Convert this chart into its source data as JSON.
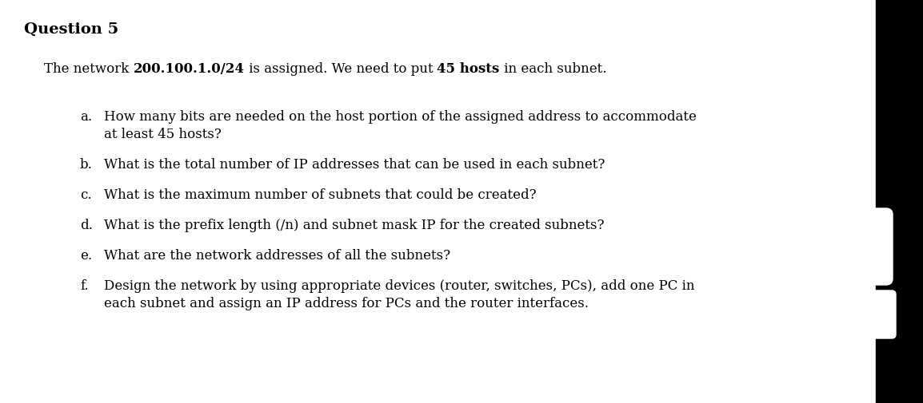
{
  "title": "Question 5",
  "intro_parts": [
    {
      "text": "The network ",
      "bold": false
    },
    {
      "text": "200.100.1.0/24",
      "bold": true
    },
    {
      "text": " is assigned. We need to put ",
      "bold": false
    },
    {
      "text": "45 hosts",
      "bold": true
    },
    {
      "text": " in each subnet.",
      "bold": false
    }
  ],
  "items": [
    {
      "label": "a.",
      "lines": [
        "How many bits are needed on the host portion of the assigned address to accommodate",
        "at least 45 hosts?"
      ]
    },
    {
      "label": "b.",
      "lines": [
        "What is the total number of IP addresses that can be used in each subnet?"
      ]
    },
    {
      "label": "c.",
      "lines": [
        "What is the maximum number of subnets that could be created?"
      ]
    },
    {
      "label": "d.",
      "lines": [
        "What is the prefix length (/n) and subnet mask IP for the created subnets?"
      ]
    },
    {
      "label": "e.",
      "lines": [
        "What are the network addresses of all the subnets?"
      ]
    },
    {
      "label": "f.",
      "lines": [
        "Design the network by using appropriate devices (router, switches, PCs), add one PC in",
        "each subnet and assign an IP address for PCs and the router interfaces."
      ]
    }
  ],
  "bg_color": "#ffffff",
  "text_color": "#000000",
  "title_fontsize": 14,
  "body_fontsize": 12
}
